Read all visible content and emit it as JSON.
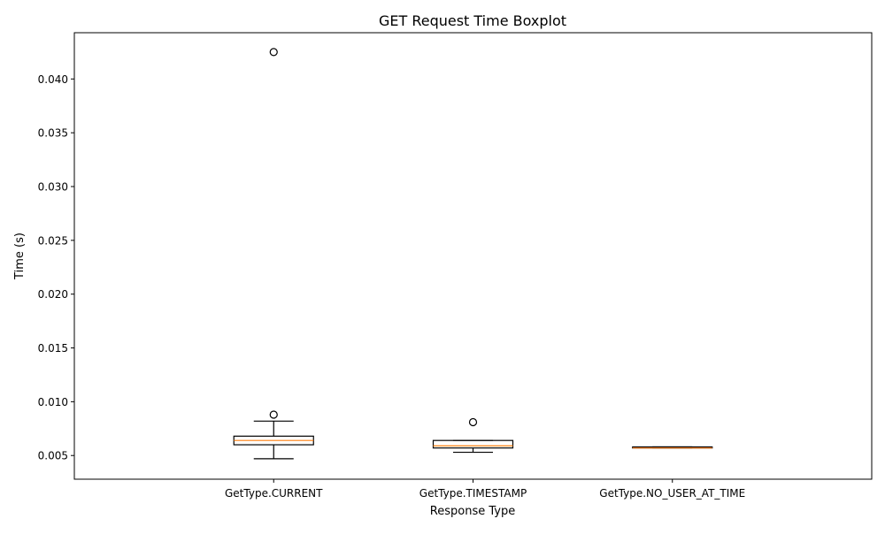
{
  "chart_data": {
    "type": "box",
    "title": "GET Request Time Boxplot",
    "xlabel": "Response Type",
    "ylabel": "Time (s)",
    "ylim": [
      0.0028,
      0.0443
    ],
    "yticks": [
      "0.005",
      "0.010",
      "0.015",
      "0.020",
      "0.025",
      "0.030",
      "0.035",
      "0.040"
    ],
    "ytick_values": [
      0.005,
      0.01,
      0.015,
      0.02,
      0.025,
      0.03,
      0.035,
      0.04
    ],
    "categories": [
      "GetType.CURRENT",
      "GetType.TIMESTAMP",
      "GetType.NO_USER_AT_TIME"
    ],
    "boxes": [
      {
        "category": "GetType.CURRENT",
        "whisker_low": 0.0047,
        "q1": 0.006,
        "median": 0.0064,
        "q3": 0.0068,
        "whisker_high": 0.0082,
        "outliers": [
          0.0088,
          0.0425
        ]
      },
      {
        "category": "GetType.TIMESTAMP",
        "whisker_low": 0.0053,
        "q1": 0.0057,
        "median": 0.0059,
        "q3": 0.0064,
        "whisker_high": 0.0064,
        "outliers": [
          0.0081
        ]
      },
      {
        "category": "GetType.NO_USER_AT_TIME",
        "whisker_low": 0.0057,
        "q1": 0.0057,
        "median": 0.0057,
        "q3": 0.0058,
        "whisker_high": 0.0058,
        "outliers": []
      }
    ],
    "grid": false,
    "colors": {
      "box": "#000000",
      "median": "#ff7f0e",
      "outlier": "#000000"
    }
  }
}
